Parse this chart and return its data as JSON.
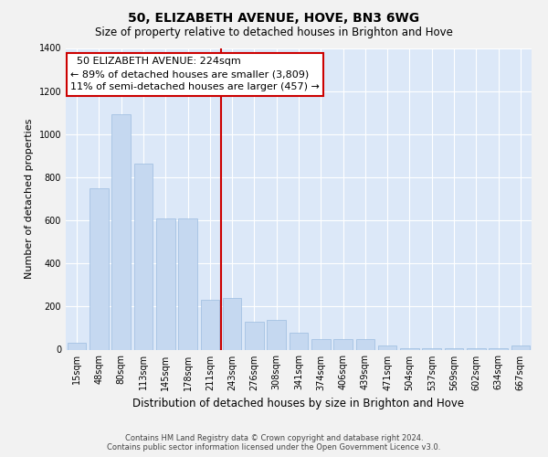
{
  "title": "50, ELIZABETH AVENUE, HOVE, BN3 6WG",
  "subtitle": "Size of property relative to detached houses in Brighton and Hove",
  "xlabel": "Distribution of detached houses by size in Brighton and Hove",
  "ylabel": "Number of detached properties",
  "footer_line1": "Contains HM Land Registry data © Crown copyright and database right 2024.",
  "footer_line2": "Contains public sector information licensed under the Open Government Licence v3.0.",
  "annotation_line1": "  50 ELIZABETH AVENUE: 224sqm  ",
  "annotation_line2": "← 89% of detached houses are smaller (3,809)",
  "annotation_line3": "11% of semi-detached houses are larger (457) →",
  "bar_color": "#c5d8f0",
  "bar_edge_color": "#9bbce0",
  "vline_color": "#cc0000",
  "fig_bg_color": "#f2f2f2",
  "plot_bg_color": "#dce8f8",
  "ylim": [
    0,
    1400
  ],
  "yticks": [
    0,
    200,
    400,
    600,
    800,
    1000,
    1200,
    1400
  ],
  "categories": [
    "15sqm",
    "48sqm",
    "80sqm",
    "113sqm",
    "145sqm",
    "178sqm",
    "211sqm",
    "243sqm",
    "276sqm",
    "308sqm",
    "341sqm",
    "374sqm",
    "406sqm",
    "439sqm",
    "471sqm",
    "504sqm",
    "537sqm",
    "569sqm",
    "602sqm",
    "634sqm",
    "667sqm"
  ],
  "values": [
    30,
    748,
    1093,
    863,
    610,
    608,
    230,
    238,
    130,
    140,
    80,
    50,
    50,
    50,
    18,
    7,
    7,
    5,
    5,
    5,
    18
  ],
  "vline_x_index": 6.5,
  "grid_color": "#ffffff",
  "title_fontsize": 10,
  "subtitle_fontsize": 8.5,
  "annotation_fontsize": 8,
  "ylabel_fontsize": 8,
  "xlabel_fontsize": 8.5,
  "tick_fontsize": 7,
  "footer_fontsize": 6
}
